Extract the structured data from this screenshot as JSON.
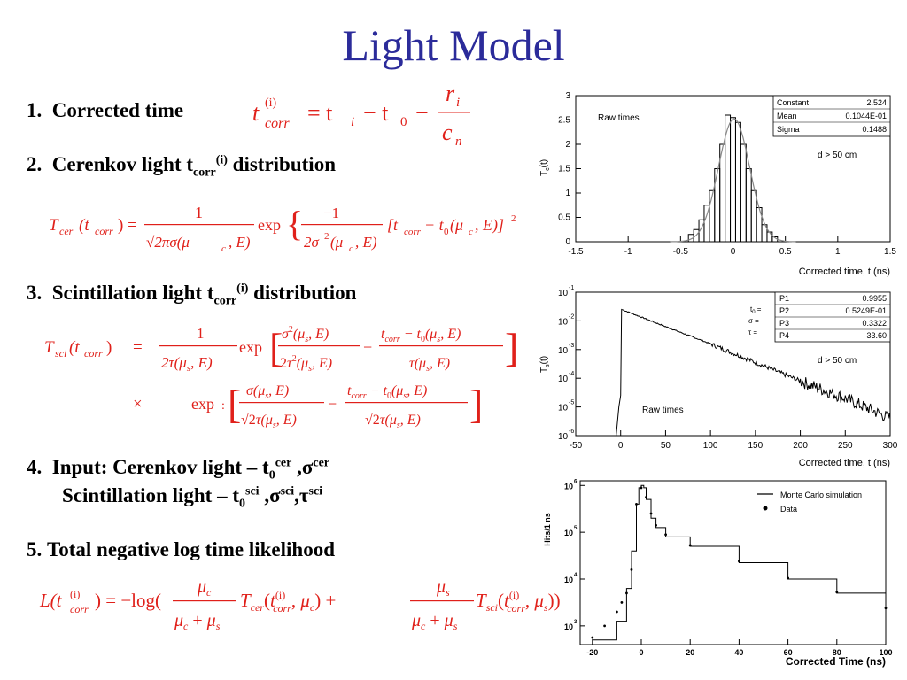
{
  "title": "Light Model",
  "items": [
    {
      "num": "1.",
      "text": "Corrected time"
    },
    {
      "num": "2.",
      "pre": "Cerenkov light t",
      "sub": "corr",
      "sup": "(i)",
      "post": " distribution"
    },
    {
      "num": "3.",
      "pre": "Scintillation light t",
      "sub": "corr",
      "sup": "(i)",
      "post": " distribution"
    },
    {
      "num": "4.",
      "line1": {
        "pre": "Input: Cerenkov light – t",
        "sub0": "0",
        "sup0": "cer",
        "mid": " ,σ",
        "sup1": "cer"
      },
      "line2": {
        "pre": "Scintillation light – t",
        "sub0": "0",
        "sup0": "sci",
        "mid": " ,σ",
        "sup1": "sci",
        "mid2": ",τ",
        "sup2": "sci"
      }
    },
    {
      "num": "5.",
      "text": "Total negative log time likelihood"
    }
  ],
  "equations": {
    "eq1": {
      "lhs": "t",
      "lhs_sup": "(i)",
      "lhs_sub": "corr",
      "rhs": "= t",
      "ti_sub": "i",
      "minus_t0": "− t",
      "t0_sub": "0",
      "minus": "−",
      "num": "r",
      "num_sub": "i",
      "den": "c",
      "den_sub": "n"
    },
    "eq2": {
      "lhs": "T",
      "lhs_sub": "cer",
      "arg": "(t",
      "arg_sub": "corr",
      "arg_close": ") =",
      "frac_num": "1",
      "frac_den": "√2πσ(μ",
      "den_sub": "c",
      "den_close": ", E)",
      "exp": "exp",
      "inner_num": "−1",
      "inner_den": "2σ",
      "inner_den_sup": "2",
      "inner_den_mid": "(μ",
      "inner_den_sub": "c",
      "inner_den_close": ", E)",
      "bracket": "[t",
      "b_sub": "corr",
      "b_mid": "− t",
      "b_sub0": "0",
      "b_mu": "(μ",
      "b_musub": "c",
      "b_close": ", E)]",
      "b_sup": "2"
    },
    "eq3": {
      "lhs": "T",
      "lhs_sub": "sci",
      "arg": "(t",
      "arg_sub": "corr",
      "arg_close": ")",
      "eq": "=",
      "times": "×",
      "exp": "exp"
    },
    "eq5": {
      "lhs": "L(t",
      "lhs_sup": "(i)",
      "lhs_sub": "corr",
      "lhs_close": ") = −log(",
      "mu": "μ",
      "mu_c": "c",
      "mu_s": "s",
      "T": "T",
      "cer": "cer",
      "sci": "sci",
      "plus": "+",
      "close": "))"
    }
  },
  "plots": [
    {
      "ylabel": "T",
      "ylabel_sub": "c",
      "ylabel_close": "(t)",
      "xlabel": "Corrected time, t (ns)",
      "annot": "Raw times",
      "cut": "d > 50 cm",
      "xticks": [
        "-1.5",
        "-1",
        "-0.5",
        "0",
        "0.5",
        "1",
        "1.5"
      ],
      "yticks": [
        "0",
        "0.5",
        "1",
        "1.5",
        "2",
        "2.5",
        "3"
      ],
      "stats": [
        [
          "Constant",
          "2.524"
        ],
        [
          "Mean",
          "0.1044E-01"
        ],
        [
          "Sigma",
          "0.1488"
        ]
      ],
      "chart_data": {
        "type": "bar",
        "xlim": [
          -1.5,
          1.5
        ],
        "ylim": [
          0,
          3
        ],
        "x": [
          -0.4,
          -0.35,
          -0.3,
          -0.25,
          -0.2,
          -0.15,
          -0.1,
          -0.05,
          0,
          0.05,
          0.1,
          0.15,
          0.2,
          0.25,
          0.3,
          0.35,
          0.4
        ],
        "values": [
          0.15,
          0.25,
          0.45,
          0.75,
          1.05,
          1.5,
          2.0,
          2.6,
          2.55,
          2.45,
          2.0,
          1.5,
          1.05,
          0.7,
          0.35,
          0.2,
          0.1
        ],
        "fit": {
          "type": "gaussian",
          "constant": 2.524,
          "mean": 0.01044,
          "sigma": 0.1488
        }
      }
    },
    {
      "ylabel": "T",
      "ylabel_sub": "s",
      "ylabel_close": "(t)",
      "xlabel": "Corrected time, t (ns)",
      "annot": "Raw times",
      "cut": "d > 50 cm",
      "xticks": [
        "-50",
        "0",
        "50",
        "100",
        "150",
        "200",
        "250",
        "300"
      ],
      "yticks": [
        "10",
        "10",
        "10",
        "10",
        "10",
        "10"
      ],
      "yexp": [
        "-1",
        "-2",
        "-3",
        "-4",
        "-5",
        "-6"
      ],
      "stats": [
        [
          "P1",
          "0.9955"
        ],
        [
          "P2",
          "0.5249E-01"
        ],
        [
          "P3",
          "0.3322"
        ],
        [
          "P4",
          "33.60"
        ]
      ],
      "param_labels": [
        "t",
        "σ =",
        "τ ="
      ],
      "param_t0_sub": "0",
      "chart_data": {
        "type": "line",
        "xlim": [
          -50,
          300
        ],
        "ylim_log10": [
          -6,
          -1
        ],
        "x": [
          -5,
          -2,
          0,
          1,
          50,
          100,
          150,
          200,
          250,
          300
        ],
        "y_log10": [
          -6,
          -5,
          -4.6,
          -1.6,
          -2.2,
          -2.8,
          -3.45,
          -4.1,
          -4.7,
          -5.4
        ]
      }
    },
    {
      "ylabel": "Hits/1 ns",
      "xlabel": "Corrected Time (ns)",
      "xticks": [
        "-20",
        "0",
        "20",
        "40",
        "60",
        "80",
        "100"
      ],
      "yticks": [
        "10",
        "10",
        "10",
        "10"
      ],
      "yexp": [
        "6",
        "5",
        "4",
        "3"
      ],
      "legend": [
        {
          "name": "Monte Carlo simulation",
          "style": "line"
        },
        {
          "name": "Data",
          "style": "dot"
        }
      ],
      "chart_data": {
        "type": "line",
        "xlim": [
          -25,
          100
        ],
        "ylim_log10": [
          2.6,
          6.1
        ],
        "series": [
          {
            "name": "Monte Carlo simulation",
            "x": [
              -20,
              -10,
              -6,
              -4,
              -2,
              -1,
              0,
              1,
              2,
              4,
              6,
              10,
              20,
              40,
              60,
              80,
              100
            ],
            "y_log10": [
              2.7,
              3.1,
              3.8,
              4.6,
              5.6,
              5.95,
              6.0,
              5.95,
              5.7,
              5.3,
              5.1,
              4.9,
              4.7,
              4.35,
              4.0,
              3.7,
              3.35
            ]
          },
          {
            "name": "Data",
            "x": [
              -20,
              -15,
              -10,
              -8,
              -6,
              -4,
              -2,
              0,
              2,
              4,
              6,
              10,
              20,
              40,
              60,
              80,
              100
            ],
            "y_log10": [
              2.75,
              3.0,
              3.3,
              3.5,
              3.7,
              4.2,
              5.6,
              5.95,
              5.75,
              5.4,
              5.15,
              4.95,
              4.72,
              4.38,
              4.02,
              3.72,
              3.38
            ]
          }
        ]
      }
    }
  ]
}
